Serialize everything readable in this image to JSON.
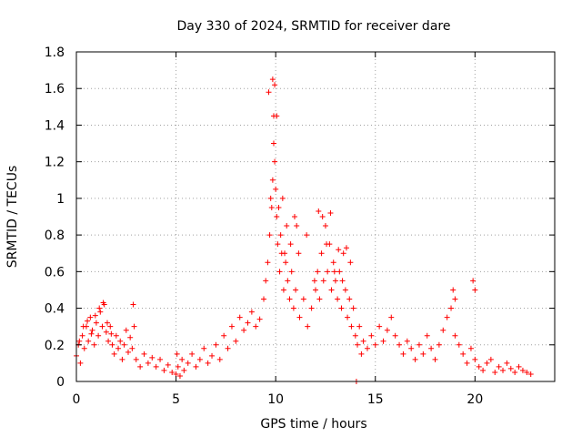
{
  "chart_data": {
    "type": "scatter",
    "title": "Day 330 of 2024, SRMTID for receiver dare",
    "xlabel": "GPS time / hours",
    "ylabel": "SRMTID / TECUs",
    "xlim": [
      0,
      24
    ],
    "ylim": [
      0,
      1.8
    ],
    "xticks": [
      0,
      5,
      10,
      15,
      20
    ],
    "xtick_labels": [
      "0",
      "5",
      "10",
      "15",
      "20"
    ],
    "yticks": [
      0,
      0.2,
      0.4,
      0.6,
      0.8,
      1.0,
      1.2,
      1.4,
      1.6,
      1.8
    ],
    "ytick_labels": [
      "0",
      "0.2",
      "0.4",
      "0.6",
      "0.8",
      "1",
      "1.2",
      "1.4",
      "1.6",
      "1.8"
    ],
    "grid": true,
    "marker": "plus",
    "color": "#ff0000",
    "series": [
      {
        "name": "SRMTID",
        "x": [
          0.0,
          0.1,
          0.2,
          0.3,
          0.4,
          0.5,
          0.6,
          0.7,
          0.8,
          0.9,
          1.0,
          1.1,
          1.2,
          1.3,
          1.4,
          1.5,
          1.6,
          1.7,
          1.8,
          1.9,
          2.0,
          2.1,
          2.2,
          2.3,
          2.4,
          2.5,
          2.6,
          2.7,
          2.8,
          2.9,
          3.0,
          3.2,
          3.4,
          3.6,
          3.8,
          4.0,
          4.2,
          4.4,
          4.6,
          4.8,
          5.0,
          5.1,
          5.2,
          5.3,
          5.4,
          5.6,
          5.8,
          6.0,
          6.2,
          6.4,
          6.6,
          6.8,
          7.0,
          7.2,
          7.4,
          7.6,
          7.8,
          8.0,
          8.2,
          8.4,
          8.6,
          8.8,
          9.0,
          9.2,
          9.4,
          9.5,
          9.6,
          9.7,
          9.8,
          9.85,
          9.9,
          9.95,
          10.0,
          10.05,
          10.1,
          10.2,
          10.3,
          10.4,
          10.5,
          10.6,
          10.7,
          10.8,
          10.9,
          11.0,
          11.2,
          11.4,
          11.6,
          11.8,
          12.0,
          12.1,
          12.2,
          12.3,
          12.4,
          12.5,
          12.6,
          12.7,
          12.8,
          12.9,
          13.0,
          13.1,
          13.2,
          13.3,
          13.4,
          13.5,
          13.6,
          13.7,
          13.8,
          13.9,
          14.0,
          14.1,
          14.2,
          14.3,
          14.4,
          14.6,
          14.8,
          15.0,
          15.2,
          15.4,
          15.6,
          15.8,
          16.0,
          16.2,
          16.4,
          16.6,
          16.8,
          17.0,
          17.2,
          17.4,
          17.6,
          17.8,
          18.0,
          18.2,
          18.4,
          18.6,
          18.8,
          19.0,
          19.2,
          19.4,
          19.6,
          19.8,
          20.0,
          20.2,
          20.4,
          20.6,
          20.8,
          21.0,
          21.2,
          21.4,
          21.6,
          21.8,
          22.0,
          22.2,
          22.4,
          22.6,
          22.8,
          0.15,
          0.35,
          0.55,
          0.75,
          0.95,
          1.15,
          1.35,
          1.55,
          1.75,
          2.85,
          9.75,
          9.85,
          9.9,
          9.95,
          10.05,
          10.15,
          10.25,
          10.35,
          10.55,
          10.75,
          10.95,
          11.15,
          11.55,
          11.95,
          12.15,
          12.35,
          12.55,
          12.75,
          12.95,
          13.15,
          13.35,
          13.55,
          13.75,
          14.05,
          18.9,
          19.0,
          19.9,
          20.0,
          5.05,
          9.65,
          10.45,
          11.05
        ],
        "y": [
          0.14,
          0.2,
          0.1,
          0.25,
          0.18,
          0.3,
          0.22,
          0.35,
          0.28,
          0.2,
          0.32,
          0.25,
          0.38,
          0.3,
          0.42,
          0.27,
          0.22,
          0.3,
          0.2,
          0.15,
          0.25,
          0.18,
          0.22,
          0.12,
          0.2,
          0.28,
          0.16,
          0.24,
          0.18,
          0.3,
          0.12,
          0.08,
          0.15,
          0.1,
          0.13,
          0.08,
          0.12,
          0.06,
          0.09,
          0.05,
          0.04,
          0.08,
          0.03,
          0.12,
          0.06,
          0.1,
          0.15,
          0.08,
          0.12,
          0.18,
          0.1,
          0.14,
          0.2,
          0.12,
          0.25,
          0.18,
          0.3,
          0.22,
          0.35,
          0.28,
          0.32,
          0.38,
          0.3,
          0.34,
          0.45,
          0.55,
          0.65,
          0.8,
          0.95,
          1.1,
          1.3,
          1.2,
          1.05,
          0.9,
          0.75,
          0.6,
          0.7,
          0.5,
          0.65,
          0.55,
          0.45,
          0.6,
          0.4,
          0.5,
          0.35,
          0.45,
          0.3,
          0.4,
          0.5,
          0.6,
          0.45,
          0.7,
          0.55,
          0.85,
          0.6,
          0.75,
          0.5,
          0.65,
          0.55,
          0.45,
          0.6,
          0.4,
          0.7,
          0.5,
          0.35,
          0.45,
          0.3,
          0.4,
          0.25,
          0.2,
          0.3,
          0.15,
          0.22,
          0.18,
          0.25,
          0.2,
          0.3,
          0.22,
          0.28,
          0.35,
          0.25,
          0.2,
          0.15,
          0.22,
          0.18,
          0.12,
          0.2,
          0.15,
          0.25,
          0.18,
          0.12,
          0.2,
          0.28,
          0.35,
          0.4,
          0.25,
          0.2,
          0.15,
          0.1,
          0.18,
          0.12,
          0.08,
          0.06,
          0.1,
          0.12,
          0.05,
          0.08,
          0.06,
          0.1,
          0.07,
          0.05,
          0.08,
          0.06,
          0.05,
          0.04,
          0.22,
          0.3,
          0.33,
          0.26,
          0.36,
          0.4,
          0.43,
          0.32,
          0.26,
          0.42,
          1.0,
          1.65,
          1.45,
          1.62,
          1.45,
          0.95,
          0.8,
          1.0,
          0.85,
          0.75,
          0.9,
          0.7,
          0.8,
          0.55,
          0.93,
          0.9,
          0.75,
          0.92,
          0.6,
          0.72,
          0.55,
          0.73,
          0.65,
          0.0,
          0.5,
          0.45,
          0.55,
          0.5,
          0.15,
          1.58,
          0.7,
          0.85
        ]
      }
    ]
  }
}
